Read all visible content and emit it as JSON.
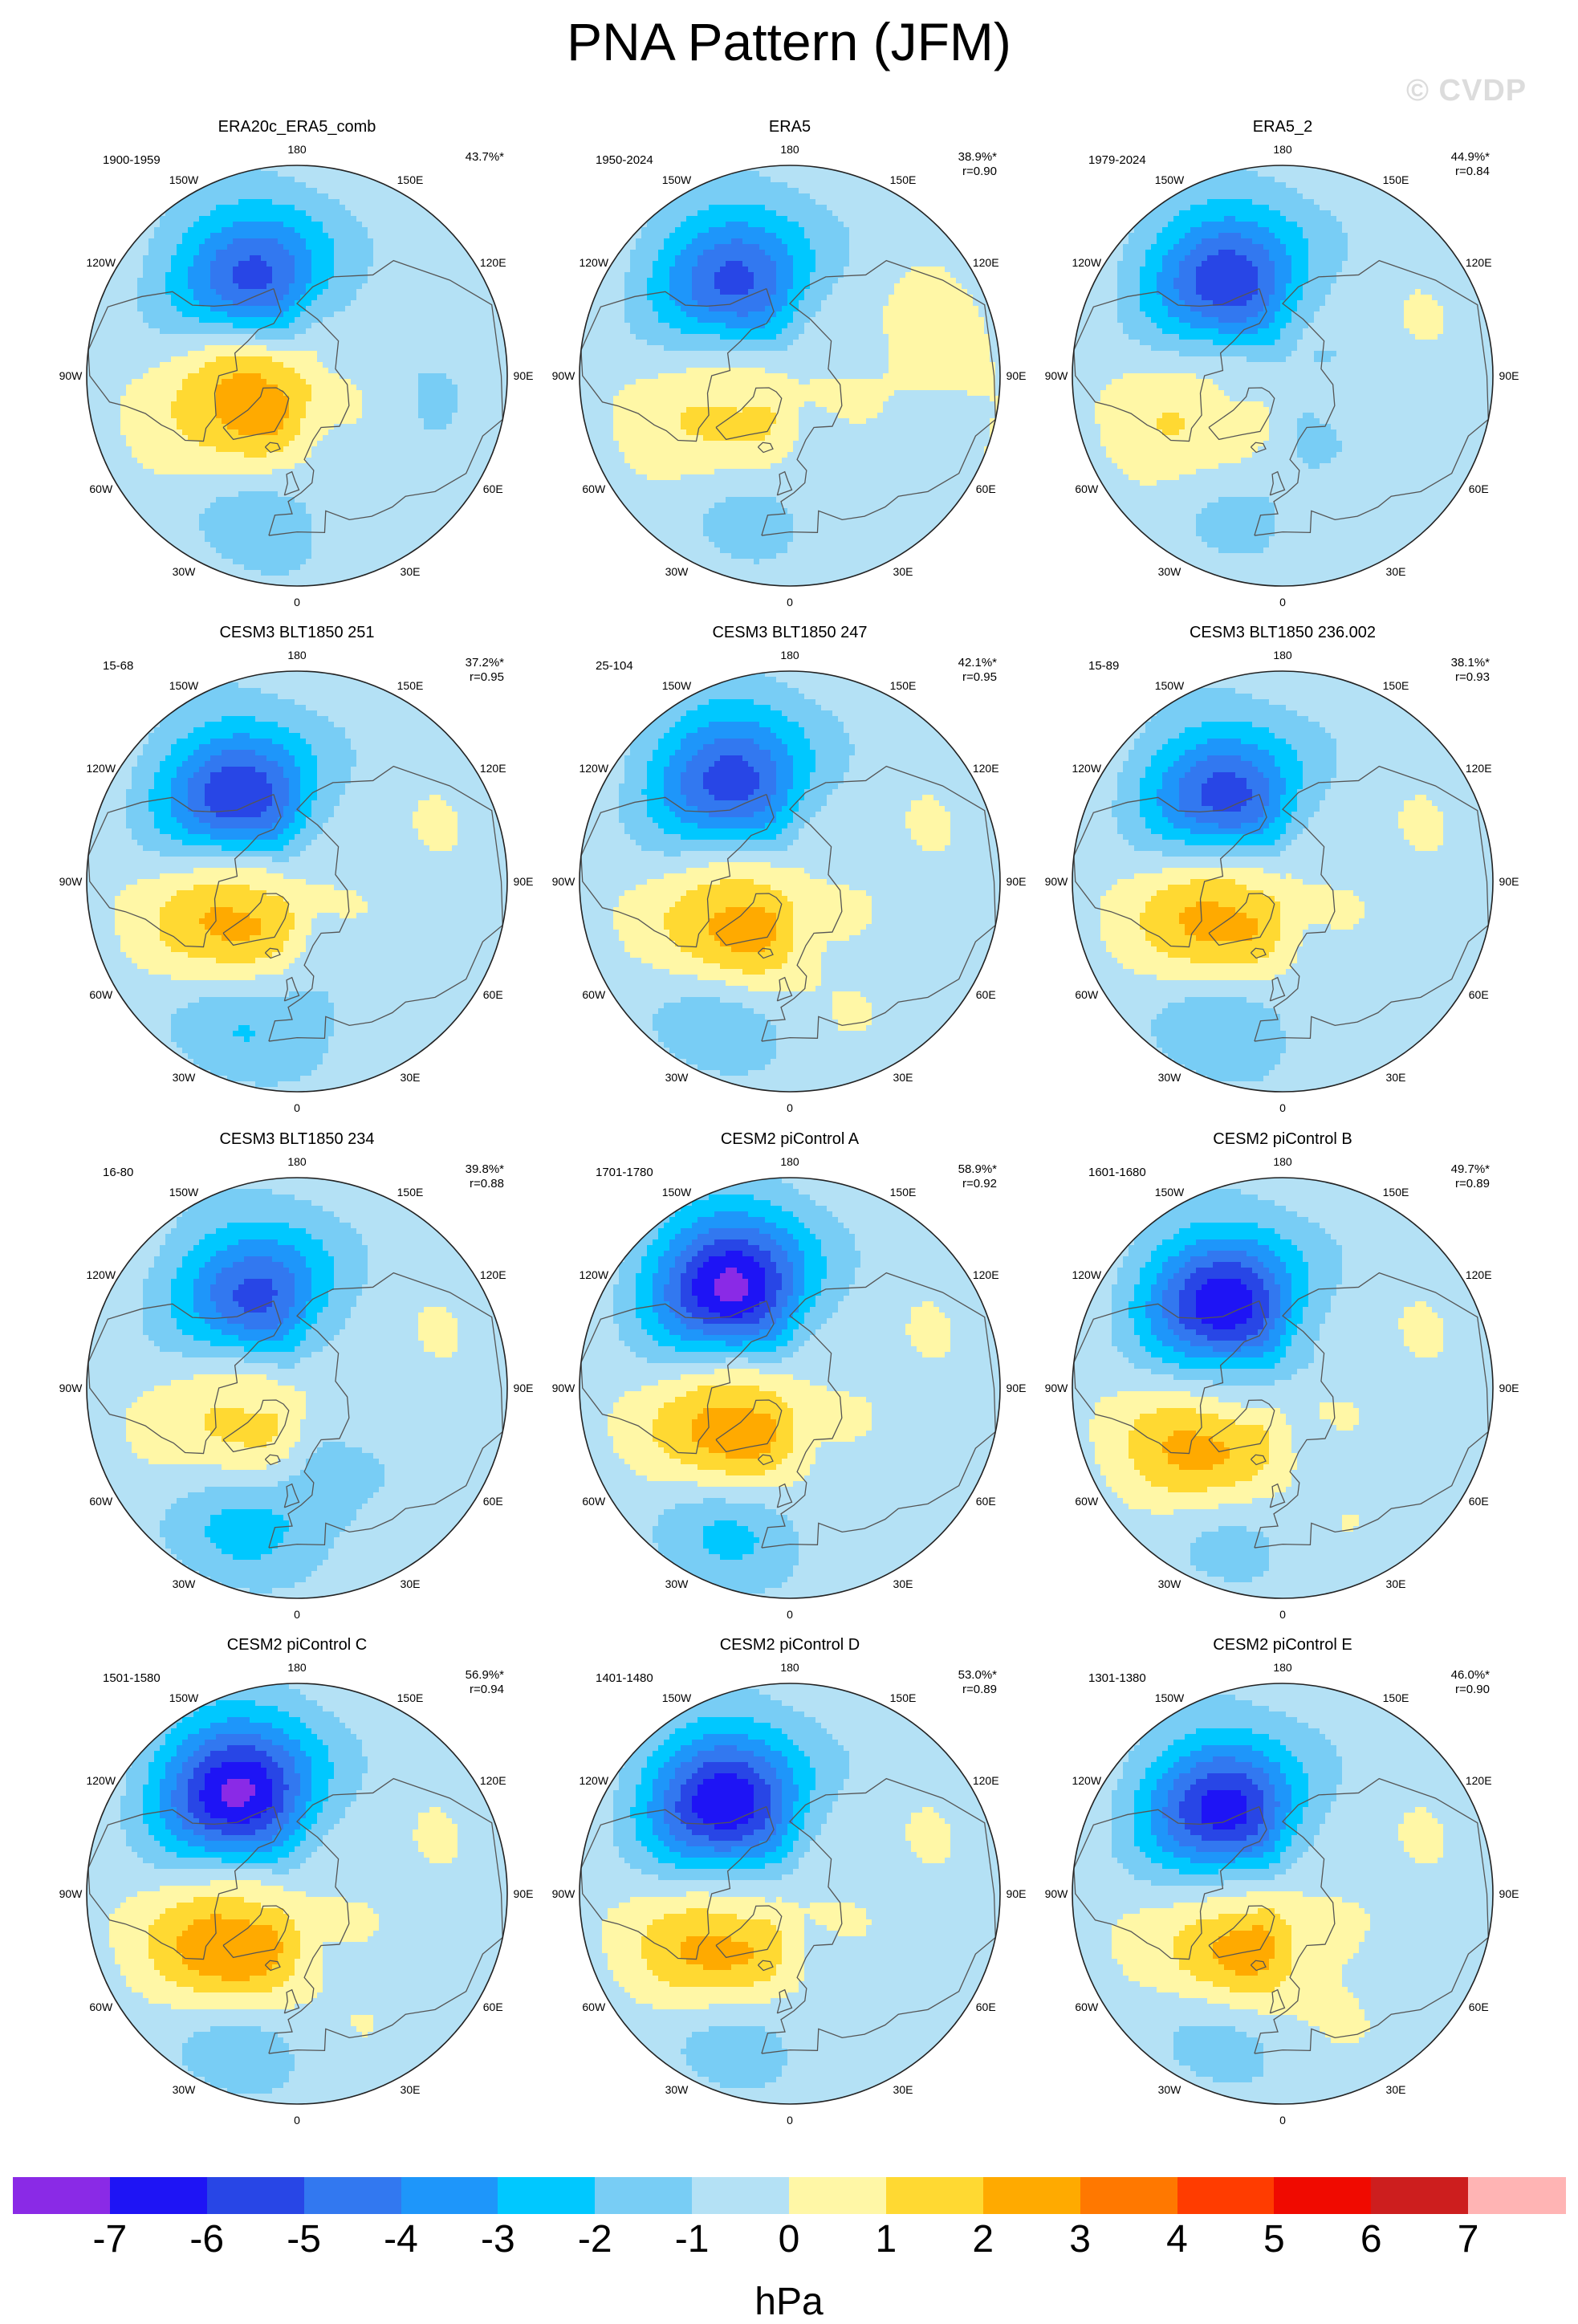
{
  "title": "PNA Pattern (JFM)",
  "watermark": "© CVDP",
  "colorbar": {
    "unit": "hPa",
    "ticks": [
      "-7",
      "-6",
      "-5",
      "-4",
      "-3",
      "-2",
      "-1",
      "0",
      "1",
      "2",
      "3",
      "4",
      "5",
      "6",
      "7"
    ],
    "colors": [
      "#8a2ae6",
      "#1e14f5",
      "#2846e6",
      "#3278f0",
      "#1e96fa",
      "#00c8ff",
      "#78cdf5",
      "#b4e1f5",
      "#fff7a6",
      "#ffd932",
      "#ffaa00",
      "#ff7800",
      "#ff3c00",
      "#f00a00",
      "#cd1e1e",
      "#ffb4b4"
    ]
  },
  "geo": {
    "lon_labels": [
      "180",
      "150E",
      "120E",
      "90E",
      "60E",
      "30E",
      "0",
      "30W",
      "60W",
      "90W",
      "120W",
      "150W"
    ],
    "lon_values": [
      180,
      150,
      120,
      90,
      60,
      30,
      0,
      -30,
      -60,
      -90,
      -120,
      -150
    ]
  },
  "panels": [
    {
      "title": "ERA20c_ERA5_comb",
      "years": "1900-1959",
      "pct": "43.7%*",
      "r": "",
      "field": [
        {
          "lon": -155,
          "lat": 53,
          "amp": -5.4
        },
        {
          "lon": -70,
          "lat": 72,
          "amp": 3.4
        },
        {
          "lon": -12,
          "lat": 40,
          "amp": -1.3
        },
        {
          "lon": 95,
          "lat": 45,
          "amp": -0.8
        }
      ]
    },
    {
      "title": "ERA5",
      "years": "1950-2024",
      "pct": "38.9%*",
      "r": "r=0.90",
      "field": [
        {
          "lon": -150,
          "lat": 52,
          "amp": -5.2
        },
        {
          "lon": -60,
          "lat": 65,
          "amp": 1.9
        },
        {
          "lon": -15,
          "lat": 42,
          "amp": -1.1
        },
        {
          "lon": 100,
          "lat": 40,
          "amp": 0.5
        }
      ]
    },
    {
      "title": "ERA5_2",
      "years": "1979-2024",
      "pct": "44.9%*",
      "r": "r=0.84",
      "field": [
        {
          "lon": -150,
          "lat": 52,
          "amp": -5.7
        },
        {
          "lon": -65,
          "lat": 58,
          "amp": 1.5
        },
        {
          "lon": -20,
          "lat": 40,
          "amp": -0.9
        },
        {
          "lon": 40,
          "lat": 65,
          "amp": -0.7
        }
      ]
    },
    {
      "title": "CESM3 BLT1850 251",
      "years": "15-68",
      "pct": "37.2%*",
      "r": "r=0.95",
      "field": [
        {
          "lon": -145,
          "lat": 55,
          "amp": -6.0
        },
        {
          "lon": -65,
          "lat": 65,
          "amp": 3.3
        },
        {
          "lon": -25,
          "lat": 38,
          "amp": -1.6
        },
        {
          "lon": 20,
          "lat": 45,
          "amp": -0.8
        }
      ]
    },
    {
      "title": "CESM3 BLT1850 247",
      "years": "25-104",
      "pct": "42.1%*",
      "r": "r=0.95",
      "field": [
        {
          "lon": -150,
          "lat": 50,
          "amp": -5.5
        },
        {
          "lon": -50,
          "lat": 65,
          "amp": 3.3
        },
        {
          "lon": -30,
          "lat": 40,
          "amp": -1.8
        }
      ]
    },
    {
      "title": "CESM3 BLT1850 236.002",
      "years": "15-89",
      "pct": "38.1%*",
      "r": "r=0.93",
      "field": [
        {
          "lon": -145,
          "lat": 55,
          "amp": -5.5
        },
        {
          "lon": -65,
          "lat": 65,
          "amp": 3.4
        },
        {
          "lon": -25,
          "lat": 38,
          "amp": -1.7
        }
      ]
    },
    {
      "title": "CESM3 BLT1850 234",
      "years": "16-80",
      "pct": "39.8%*",
      "r": "r=0.88",
      "field": [
        {
          "lon": -155,
          "lat": 55,
          "amp": -5.2
        },
        {
          "lon": -60,
          "lat": 68,
          "amp": 2.3
        },
        {
          "lon": -25,
          "lat": 40,
          "amp": -1.9
        },
        {
          "lon": 20,
          "lat": 55,
          "amp": -1.2
        }
      ]
    },
    {
      "title": "CESM2 piControl A",
      "years": "1701-1780",
      "pct": "58.9%*",
      "r": "r=0.92",
      "field": [
        {
          "lon": -150,
          "lat": 50,
          "amp": -7.3
        },
        {
          "lon": -55,
          "lat": 65,
          "amp": 3.6
        },
        {
          "lon": -25,
          "lat": 40,
          "amp": -2.2
        }
      ]
    },
    {
      "title": "CESM2 piControl B",
      "years": "1601-1680",
      "pct": "49.7%*",
      "r": "r=0.89",
      "field": [
        {
          "lon": -145,
          "lat": 55,
          "amp": -6.7
        },
        {
          "lon": -50,
          "lat": 55,
          "amp": 3.2
        },
        {
          "lon": -25,
          "lat": 38,
          "amp": -1.6
        }
      ]
    },
    {
      "title": "CESM2 piControl C",
      "years": "1501-1580",
      "pct": "56.9%*",
      "r": "r=0.94",
      "field": [
        {
          "lon": -150,
          "lat": 50,
          "amp": -7.2
        },
        {
          "lon": -50,
          "lat": 60,
          "amp": 3.8
        },
        {
          "lon": -25,
          "lat": 38,
          "amp": -1.8
        }
      ]
    },
    {
      "title": "CESM2 piControl D",
      "years": "1401-1480",
      "pct": "53.0%*",
      "r": "r=0.89",
      "field": [
        {
          "lon": -145,
          "lat": 52,
          "amp": -6.8
        },
        {
          "lon": -50,
          "lat": 58,
          "amp": 3.3
        },
        {
          "lon": -25,
          "lat": 40,
          "amp": -1.8
        }
      ]
    },
    {
      "title": "CESM2 piControl E",
      "years": "1301-1380",
      "pct": "46.0%*",
      "r": "r=0.90",
      "field": [
        {
          "lon": -145,
          "lat": 55,
          "amp": -6.4
        },
        {
          "lon": -40,
          "lat": 65,
          "amp": 3.2
        },
        {
          "lon": -25,
          "lat": 40,
          "amp": -1.5
        }
      ]
    }
  ]
}
